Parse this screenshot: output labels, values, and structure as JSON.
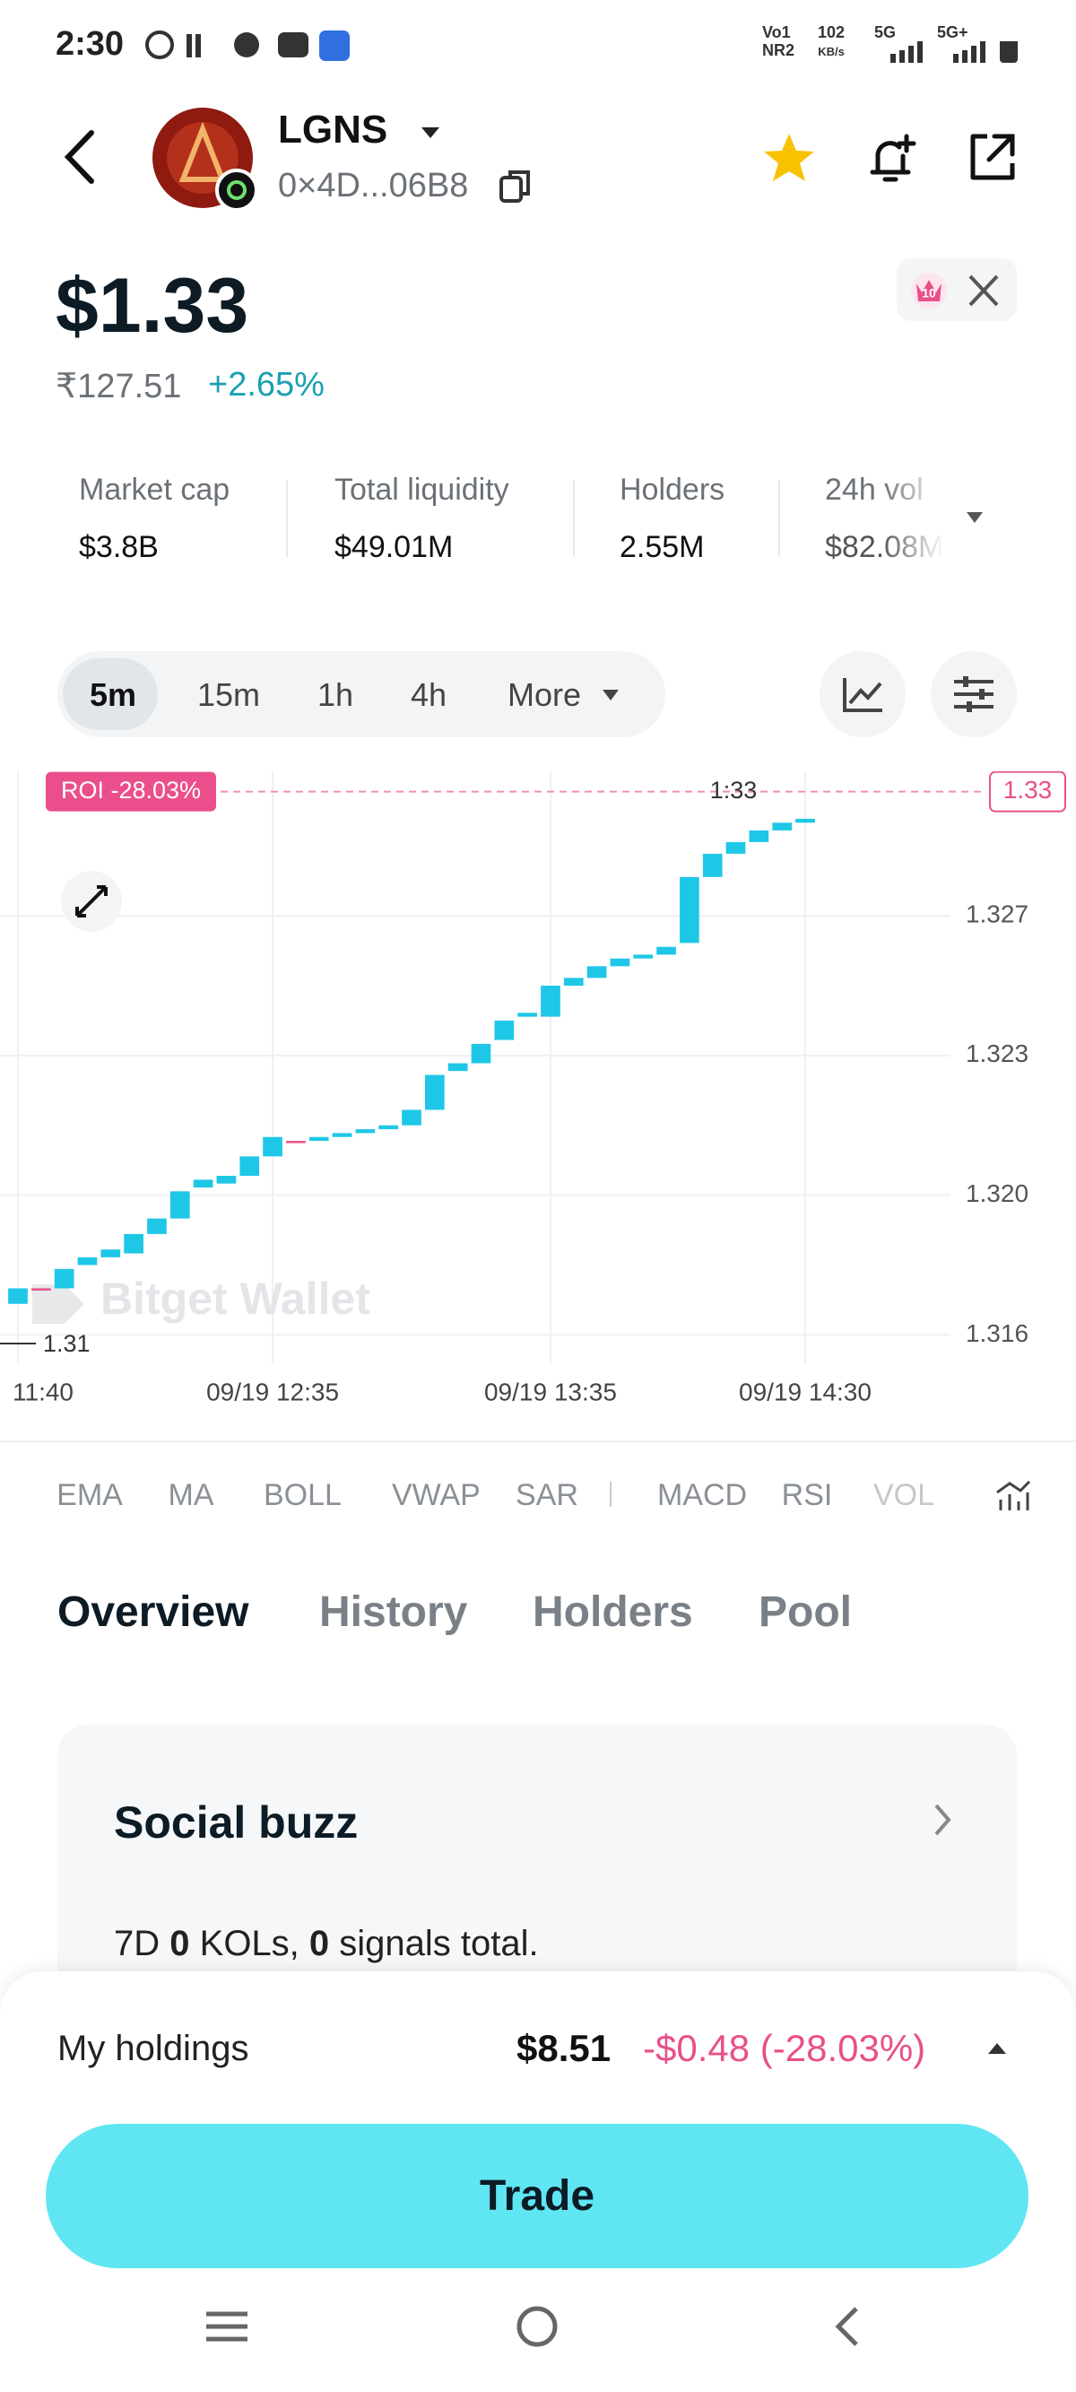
{
  "status_bar": {
    "time": "2:30",
    "network": [
      "Vo1",
      "NR2",
      "102",
      "KB/s",
      "5G",
      "5G+"
    ]
  },
  "token": {
    "symbol": "LGNS",
    "address": "0×4D...06B8",
    "price": "$1.33",
    "fiat_price": "₹127.51",
    "change": "+2.65%",
    "badge": "10"
  },
  "stats": [
    {
      "label": "Market cap",
      "value": "$3.8B"
    },
    {
      "label": "Total liquidity",
      "value": "$49.01M"
    },
    {
      "label": "Holders",
      "value": "2.55M"
    },
    {
      "label": "24h vol",
      "value": "$82.08M"
    }
  ],
  "timeframes": [
    "5m",
    "15m",
    "1h",
    "4h",
    "More"
  ],
  "chart_data": {
    "type": "candlestick",
    "categories": [
      "11:40",
      null,
      null,
      null,
      null,
      null,
      null,
      null,
      null,
      null,
      null,
      "09/19 12:35",
      null,
      null,
      null,
      null,
      null,
      null,
      null,
      null,
      null,
      null,
      null,
      "09/19 13:35",
      null,
      null,
      null,
      null,
      null,
      null,
      null,
      null,
      null,
      null,
      "09/19 14:30"
    ],
    "open": [
      1.3168,
      1.3172,
      1.3172,
      1.3178,
      1.318,
      1.3181,
      1.3186,
      1.319,
      1.3198,
      1.3199,
      1.3201,
      1.3206,
      1.321,
      1.321,
      1.3211,
      1.3212,
      1.3213,
      1.3214,
      1.3218,
      1.3228,
      1.323,
      1.3236,
      1.3242,
      1.3242,
      1.325,
      1.3252,
      1.3255,
      1.3257,
      1.3258,
      1.3261,
      1.3278,
      1.3284,
      1.3287,
      1.329,
      1.3292
    ],
    "close": [
      1.3172,
      1.3172,
      1.3177,
      1.318,
      1.3182,
      1.3186,
      1.319,
      1.3197,
      1.32,
      1.3201,
      1.3206,
      1.3211,
      1.321,
      1.3211,
      1.3212,
      1.3213,
      1.3214,
      1.3218,
      1.3227,
      1.323,
      1.3235,
      1.3241,
      1.3243,
      1.325,
      1.3252,
      1.3255,
      1.3257,
      1.3258,
      1.326,
      1.3278,
      1.3284,
      1.3287,
      1.329,
      1.3292,
      1.3293
    ],
    "up_color": "#1fc7e6",
    "flat_color": "#e8508a",
    "ylim": [
      1.3155,
      1.3302
    ],
    "yticks": [
      1.316,
      {
        "value": 1.3196,
        "label": "1.320"
      },
      {
        "value": 1.3232,
        "label": "1.323"
      },
      {
        "value": 1.3268,
        "label": "1.327"
      }
    ],
    "grid": true,
    "last_price": 1.33,
    "roi_label": "ROI -28.03%",
    "high_label": "1:33",
    "low_label": "1.31",
    "watermark": "Bitget Wallet"
  },
  "indicators": [
    "EMA",
    "MA",
    "BOLL",
    "VWAP",
    "SAR",
    "MACD",
    "RSI",
    "VOL"
  ],
  "tabs": [
    "Overview",
    "History",
    "Holders",
    "Pool"
  ],
  "social": {
    "title": "Social buzz",
    "period": "7D",
    "kols": "0",
    "kols_label": "KOLs,",
    "signals": "0",
    "signals_label": "signals total."
  },
  "holdings": {
    "label": "My holdings",
    "value": "$8.51",
    "pnl": "-$0.48 (-28.03%)"
  },
  "trade": "Trade"
}
